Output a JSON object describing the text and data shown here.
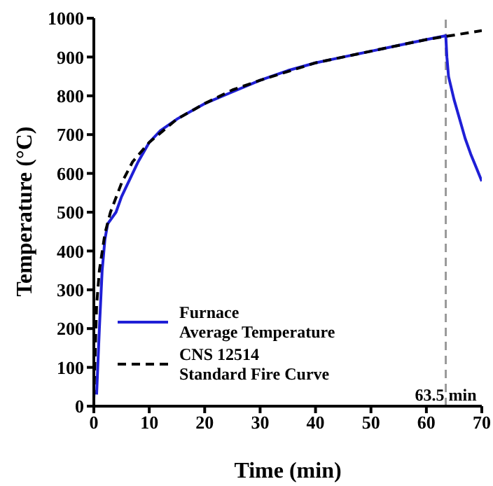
{
  "chart_data": {
    "type": "line",
    "xlabel": "Time (min)",
    "ylabel": "Temperature (°C)",
    "xlim": [
      0,
      70
    ],
    "xticks": [
      0,
      10,
      20,
      30,
      40,
      50,
      60,
      70
    ],
    "ylim": [
      0,
      1000
    ],
    "yticks": [
      0,
      100,
      200,
      300,
      400,
      500,
      600,
      700,
      800,
      900,
      1000
    ],
    "grid": false,
    "legend": "bottom left",
    "marker": "none",
    "series": [
      {
        "name": "Furnace\nAverage Temperature",
        "color": "#1f1fd6",
        "line_style": "solid",
        "x": [
          0.5,
          1,
          1.5,
          2,
          2.5,
          3,
          4,
          5,
          6,
          8,
          10,
          12,
          15,
          20,
          25,
          30,
          35,
          40,
          45,
          50,
          55,
          60,
          63.5,
          63.7,
          64,
          65,
          66,
          67,
          68,
          69,
          70
        ],
        "values": [
          30,
          200,
          350,
          430,
          470,
          480,
          500,
          540,
          570,
          630,
          680,
          710,
          740,
          780,
          810,
          840,
          865,
          885,
          900,
          915,
          930,
          945,
          955,
          900,
          850,
          790,
          740,
          690,
          650,
          615,
          580
        ]
      },
      {
        "name": "CNS 12514\nStandard Fire Curve",
        "color": "#000000",
        "line_style": "dashed",
        "x": [
          0,
          0.5,
          1,
          2,
          3,
          5,
          7,
          10,
          15,
          20,
          25,
          30,
          40,
          50,
          60,
          70
        ],
        "values": [
          20,
          260,
          350,
          445,
          500,
          575,
          630,
          680,
          740,
          780,
          815,
          840,
          885,
          915,
          945,
          968
        ]
      }
    ],
    "ref_lines": [
      {
        "axis": "x",
        "value": 63.5,
        "label": "63.5 min",
        "color": "#999999",
        "line_style": "dashed"
      }
    ]
  }
}
